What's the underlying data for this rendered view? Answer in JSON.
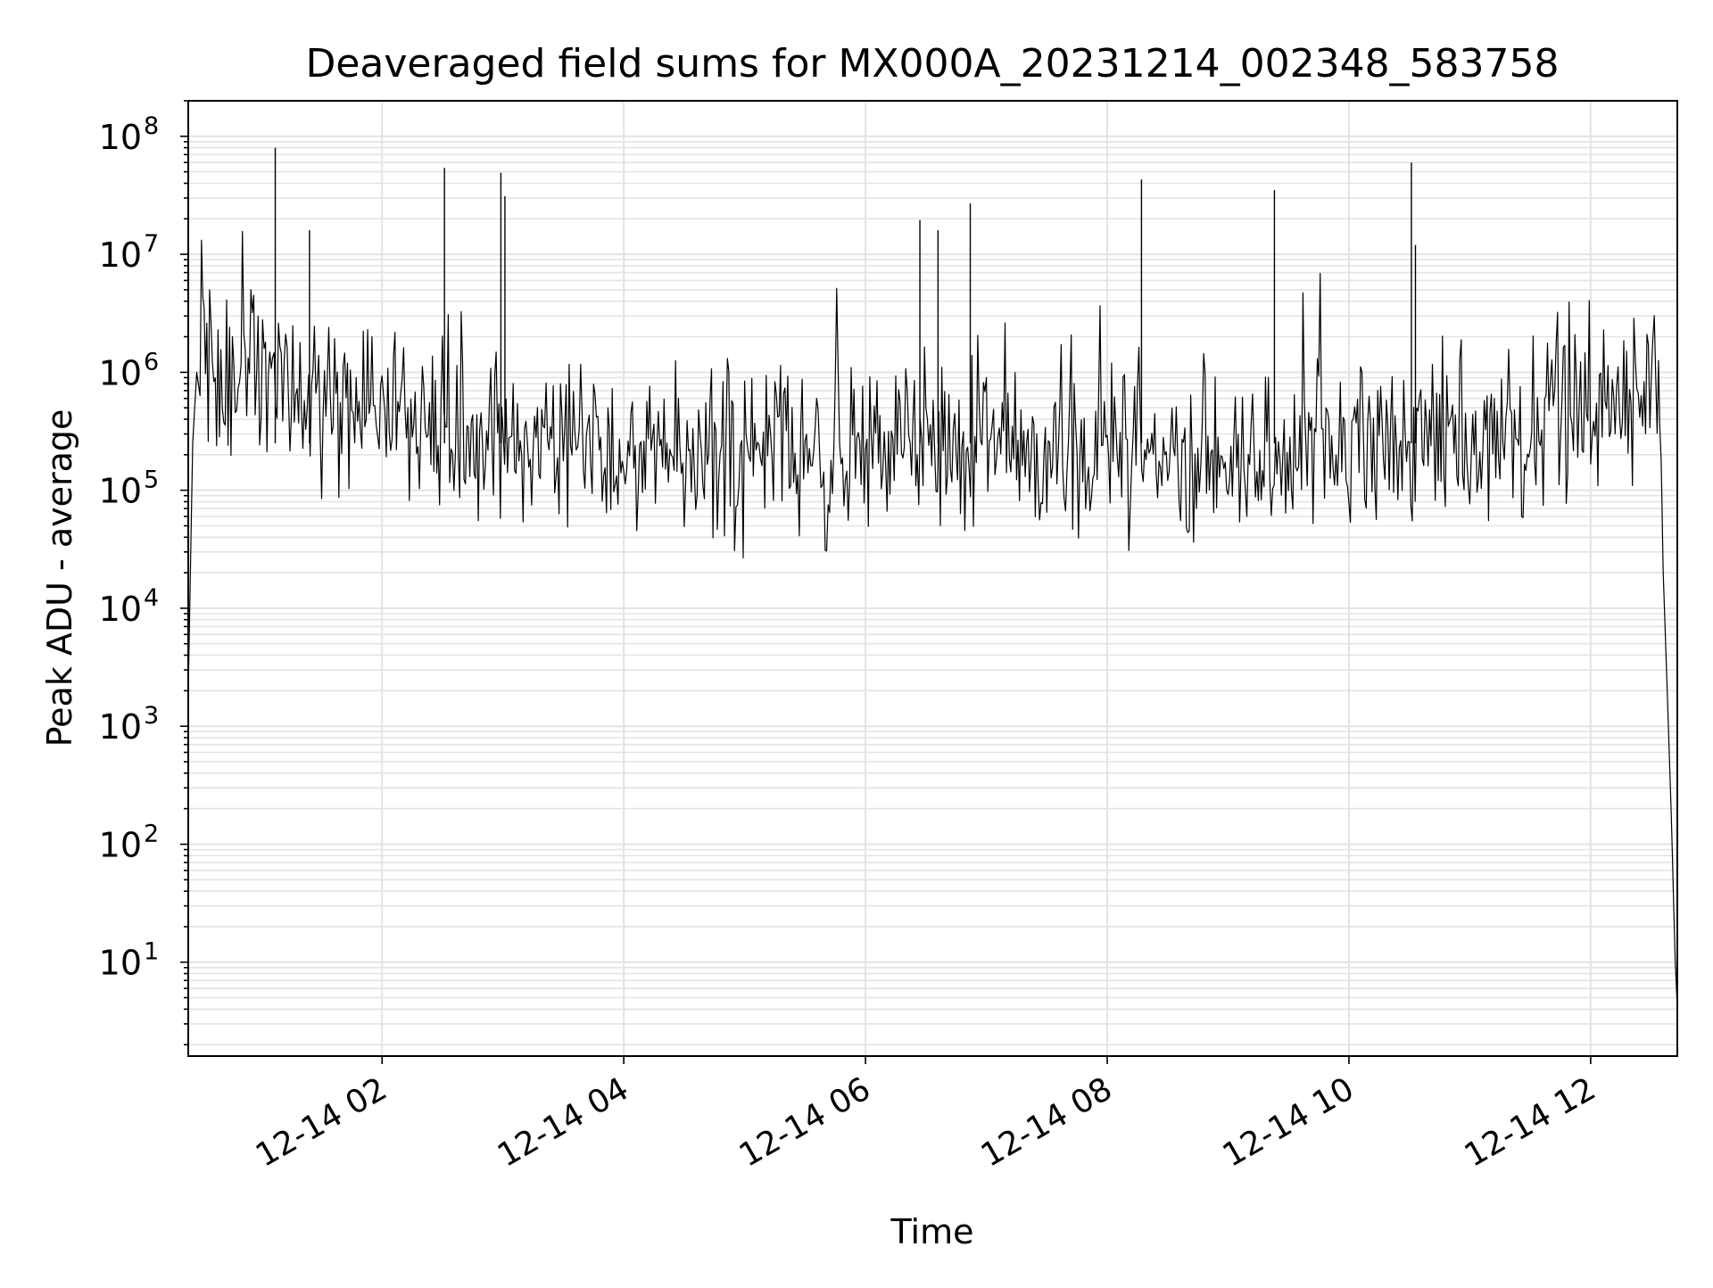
{
  "chart_data": {
    "type": "line",
    "title": "Deaveraged field sums for MX000A_20231214_002348_583758",
    "xlabel": "Time",
    "ylabel": "Peak ADU - average",
    "yscale": "log",
    "grid": true,
    "legend": "none",
    "line_color": "#000000",
    "grid_color": "#e3e3e3",
    "xlim": [
      "2023-12-14 00:23:48",
      "2023-12-14 12:43:00"
    ],
    "ylim": [
      1.6,
      200000000
    ],
    "xticks": [
      {
        "value": "2023-12-14 02:00",
        "label": "12-14 02"
      },
      {
        "value": "2023-12-14 04:00",
        "label": "12-14 04"
      },
      {
        "value": "2023-12-14 06:00",
        "label": "12-14 06"
      },
      {
        "value": "2023-12-14 08:00",
        "label": "12-14 08"
      },
      {
        "value": "2023-12-14 10:00",
        "label": "12-14 10"
      },
      {
        "value": "2023-12-14 12:00",
        "label": "12-14 12"
      }
    ],
    "yticks": [
      {
        "value": 10,
        "base": "10",
        "exp": "1"
      },
      {
        "value": 100,
        "base": "10",
        "exp": "2"
      },
      {
        "value": 1000,
        "base": "10",
        "exp": "3"
      },
      {
        "value": 10000,
        "base": "10",
        "exp": "4"
      },
      {
        "value": 100000,
        "base": "10",
        "exp": "5"
      },
      {
        "value": 1000000,
        "base": "10",
        "exp": "6"
      },
      {
        "value": 10000000,
        "base": "10",
        "exp": "7"
      },
      {
        "value": 100000000,
        "base": "10",
        "exp": "8"
      }
    ],
    "series": [
      {
        "x": [
          "2023-12-14 00:23:48",
          "2023-12-14 00:26:00",
          "2023-12-14 00:29:00",
          "2023-12-14 00:33:00",
          "2023-12-14 00:40:00",
          "2023-12-14 00:50:00",
          "2023-12-14 00:57:00",
          "2023-12-14 01:00:00",
          "2023-12-14 01:05:00",
          "2023-12-14 01:10:00",
          "2023-12-14 01:15:00",
          "2023-12-14 01:20:00",
          "2023-12-14 01:25:00",
          "2023-12-14 01:35:00",
          "2023-12-14 01:45:00",
          "2023-12-14 01:55:00",
          "2023-12-14 02:05:00",
          "2023-12-14 02:15:00",
          "2023-12-14 02:30:00",
          "2023-12-14 02:45:00",
          "2023-12-14 02:54:00",
          "2023-12-14 02:58:00",
          "2023-12-14 03:15:00",
          "2023-12-14 03:30:00",
          "2023-12-14 03:45:00",
          "2023-12-14 04:00:00",
          "2023-12-14 04:30:00",
          "2023-12-14 05:00:00",
          "2023-12-14 05:30:00",
          "2023-12-14 06:00:00",
          "2023-12-14 06:30:00",
          "2023-12-14 07:00:00",
          "2023-12-14 07:30:00",
          "2023-12-14 08:00:00",
          "2023-12-14 08:30:00",
          "2023-12-14 09:00:00",
          "2023-12-14 09:30:00",
          "2023-12-14 10:00:00",
          "2023-12-14 10:30:00",
          "2023-12-14 11:00:00",
          "2023-12-14 11:30:00",
          "2023-12-14 12:00:00",
          "2023-12-14 12:20:00",
          "2023-12-14 12:33:00",
          "2023-12-14 12:35:00",
          "2023-12-14 12:36:00",
          "2023-12-14 12:38:00",
          "2023-12-14 12:40:00",
          "2023-12-14 12:41:00",
          "2023-12-14 12:42:00",
          "2023-12-14 12:43:00"
        ],
        "y": [
          2000,
          250000,
          2000000,
          1300000,
          900000,
          1000000,
          700000,
          800000,
          900000,
          700000,
          800000,
          700000,
          650000,
          600000,
          550000,
          500000,
          450000,
          350000,
          300000,
          300000,
          280000,
          270000,
          260000,
          240000,
          230000,
          210000,
          200000,
          200000,
          210000,
          200000,
          230000,
          240000,
          230000,
          210000,
          200000,
          190000,
          200000,
          210000,
          220000,
          300000,
          350000,
          420000,
          550000,
          1000000,
          180000,
          20000,
          2000,
          180,
          40,
          10,
          4
        ]
      }
    ],
    "spikes": [
      {
        "x": "2023-12-14 01:07:00",
        "y": 80000000
      },
      {
        "x": "2023-12-14 01:24:00",
        "y": 16000000
      },
      {
        "x": "2023-12-14 02:31:00",
        "y": 54000000
      },
      {
        "x": "2023-12-14 02:59:00",
        "y": 49000000
      },
      {
        "x": "2023-12-14 03:01:00",
        "y": 31000000
      },
      {
        "x": "2023-12-14 06:27:00",
        "y": 19500000
      },
      {
        "x": "2023-12-14 06:36:00",
        "y": 16000000
      },
      {
        "x": "2023-12-14 06:52:00",
        "y": 27000000
      },
      {
        "x": "2023-12-14 08:17:00",
        "y": 43000000
      },
      {
        "x": "2023-12-14 09:23:00",
        "y": 35000000
      },
      {
        "x": "2023-12-14 10:31:00",
        "y": 60000000
      },
      {
        "x": "2023-12-14 10:33:00",
        "y": 12000000
      }
    ]
  }
}
